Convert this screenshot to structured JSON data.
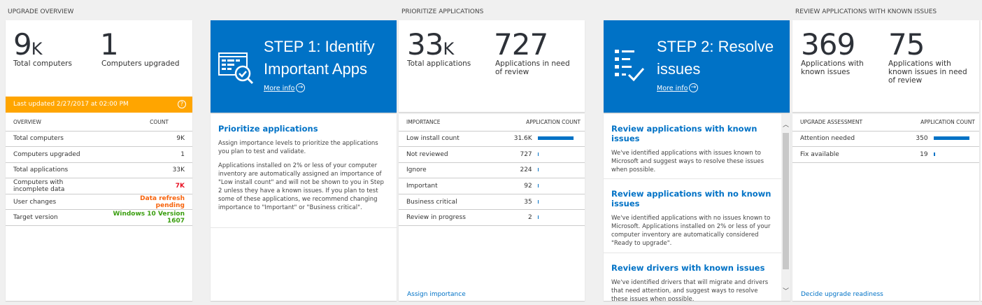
{
  "sections": {
    "overview": "UPGRADE OVERVIEW",
    "prioritize": "PRIORITIZE APPLICATIONS",
    "review": "REVIEW APPLICATIONS WITH KNOWN ISSUES"
  },
  "overview": {
    "stat1": {
      "value": "9",
      "unit": "K",
      "label": "Total computers"
    },
    "stat2": {
      "value": "1",
      "label": "Computers upgraded"
    },
    "last_updated": "Last updated 2/27/2017 at 02:00 PM",
    "banner_color": "#ffa500",
    "columns": [
      "OVERVIEW",
      "COUNT"
    ],
    "rows": [
      {
        "label": "Total computers",
        "value": "9K"
      },
      {
        "label": "Computers upgraded",
        "value": "1"
      },
      {
        "label": "Total applications",
        "value": "33K"
      },
      {
        "label": "Computers with incomplete data",
        "value": "7K",
        "color": "#e81123"
      },
      {
        "label": "User changes",
        "value": "Data refresh pending",
        "color": "#f7630c"
      },
      {
        "label": "Target version",
        "value": "Windows 10 Version 1607",
        "color": "#3a9e0f"
      }
    ]
  },
  "step1": {
    "title": "STEP 1: Identify Important Apps",
    "more_info": "More info",
    "icon": "app-list-check-icon",
    "heading": "Prioritize applications",
    "p1": "Assign importance levels to prioritize the applications you plan to test and validate.",
    "p2": "Applications installed on 2% or less of your computer inventory are automatically assigned an importance of \"Low install count\" and will not be shown to you in Step 2 unless they have a known issues. If you plan to test some of these applications, we recommend changing importance to \"Important\" or \"Business critical\"."
  },
  "prioritize": {
    "stat1": {
      "value": "33",
      "unit": "K",
      "label": "Total applications"
    },
    "stat2": {
      "value": "727",
      "label": "Applications in need of review"
    },
    "columns": [
      "IMPORTANCE",
      "APPLICATION COUNT"
    ],
    "rows": [
      {
        "label": "Low install count",
        "value": "31.6K",
        "n": 31600
      },
      {
        "label": "Not reviewed",
        "value": "727",
        "n": 727
      },
      {
        "label": "Ignore",
        "value": "224",
        "n": 224
      },
      {
        "label": "Important",
        "value": "92",
        "n": 92
      },
      {
        "label": "Business critical",
        "value": "35",
        "n": 35
      },
      {
        "label": "Review in progress",
        "value": "2",
        "n": 2
      }
    ],
    "link": "Assign importance"
  },
  "step2": {
    "title": "STEP 2: Resolve issues",
    "more_info": "More info",
    "icon": "checklist-icon",
    "items": [
      {
        "heading": "Review applications with known issues",
        "text": "We've identified applications with issues known to Microsoft and suggest ways to resolve these issues when possible."
      },
      {
        "heading": "Review applications with no known issues",
        "text": "We've identified applications with no issues known to Microsoft. Applications installed on 2% or less of your computer inventory are automatically considered \"Ready to upgrade\"."
      },
      {
        "heading": "Review drivers with known issues",
        "text": "We've identified drivers that will migrate and drivers that need attention, and suggest ways to resolve these issues when possible."
      }
    ]
  },
  "review": {
    "stat1": {
      "value": "369",
      "label": "Applications with known issues"
    },
    "stat2": {
      "value": "75",
      "label": "Applications with known issues in need of review"
    },
    "columns": [
      "UPGRADE ASSESSMENT",
      "APPLICATION COUNT"
    ],
    "rows": [
      {
        "label": "Attention needed",
        "value": "350",
        "n": 350
      },
      {
        "label": "Fix available",
        "value": "19",
        "n": 19
      }
    ],
    "link": "Decide upgrade readiness"
  },
  "accent": "#0072c6"
}
